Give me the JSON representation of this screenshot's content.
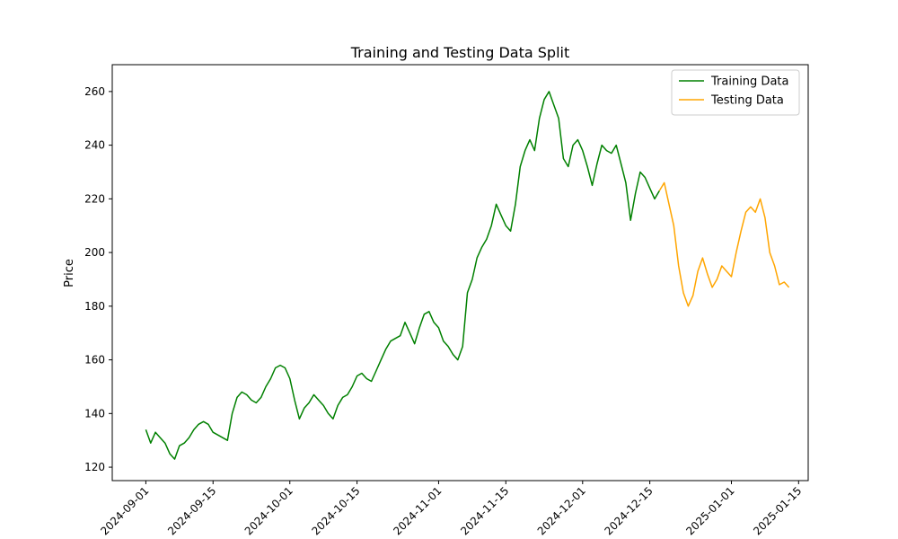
{
  "chart_data": {
    "type": "line",
    "title": "Training and Testing Data Split",
    "xlabel": "",
    "ylabel": "Price",
    "xlim": [
      "2024-08-25",
      "2025-01-17"
    ],
    "ylim": [
      115,
      270
    ],
    "grid": false,
    "legend_position": "top-right",
    "x_ticks": [
      "2024-09-01",
      "2024-09-15",
      "2024-10-01",
      "2024-10-15",
      "2024-11-01",
      "2024-11-15",
      "2024-12-01",
      "2024-12-15",
      "2025-01-01",
      "2025-01-15"
    ],
    "y_ticks": [
      120,
      140,
      160,
      180,
      200,
      220,
      240,
      260
    ],
    "series": [
      {
        "name": "Training Data",
        "color": "#008000",
        "points": [
          [
            "2024-09-01",
            134
          ],
          [
            "2024-09-02",
            129
          ],
          [
            "2024-09-03",
            133
          ],
          [
            "2024-09-04",
            131
          ],
          [
            "2024-09-05",
            129
          ],
          [
            "2024-09-06",
            125
          ],
          [
            "2024-09-07",
            123
          ],
          [
            "2024-09-08",
            128
          ],
          [
            "2024-09-09",
            129
          ],
          [
            "2024-09-10",
            131
          ],
          [
            "2024-09-11",
            134
          ],
          [
            "2024-09-12",
            136
          ],
          [
            "2024-09-13",
            137
          ],
          [
            "2024-09-14",
            136
          ],
          [
            "2024-09-15",
            133
          ],
          [
            "2024-09-16",
            132
          ],
          [
            "2024-09-17",
            131
          ],
          [
            "2024-09-18",
            130
          ],
          [
            "2024-09-19",
            140
          ],
          [
            "2024-09-20",
            146
          ],
          [
            "2024-09-21",
            148
          ],
          [
            "2024-09-22",
            147
          ],
          [
            "2024-09-23",
            145
          ],
          [
            "2024-09-24",
            144
          ],
          [
            "2024-09-25",
            146
          ],
          [
            "2024-09-26",
            150
          ],
          [
            "2024-09-27",
            153
          ],
          [
            "2024-09-28",
            157
          ],
          [
            "2024-09-29",
            158
          ],
          [
            "2024-09-30",
            157
          ],
          [
            "2024-10-01",
            153
          ],
          [
            "2024-10-02",
            145
          ],
          [
            "2024-10-03",
            138
          ],
          [
            "2024-10-04",
            142
          ],
          [
            "2024-10-05",
            144
          ],
          [
            "2024-10-06",
            147
          ],
          [
            "2024-10-07",
            145
          ],
          [
            "2024-10-08",
            143
          ],
          [
            "2024-10-09",
            140
          ],
          [
            "2024-10-10",
            138
          ],
          [
            "2024-10-11",
            143
          ],
          [
            "2024-10-12",
            146
          ],
          [
            "2024-10-13",
            147
          ],
          [
            "2024-10-14",
            150
          ],
          [
            "2024-10-15",
            154
          ],
          [
            "2024-10-16",
            155
          ],
          [
            "2024-10-17",
            153
          ],
          [
            "2024-10-18",
            152
          ],
          [
            "2024-10-19",
            156
          ],
          [
            "2024-10-20",
            160
          ],
          [
            "2024-10-21",
            164
          ],
          [
            "2024-10-22",
            167
          ],
          [
            "2024-10-23",
            168
          ],
          [
            "2024-10-24",
            169
          ],
          [
            "2024-10-25",
            174
          ],
          [
            "2024-10-26",
            170
          ],
          [
            "2024-10-27",
            166
          ],
          [
            "2024-10-28",
            172
          ],
          [
            "2024-10-29",
            177
          ],
          [
            "2024-10-30",
            178
          ],
          [
            "2024-10-31",
            174
          ],
          [
            "2024-11-01",
            172
          ],
          [
            "2024-11-02",
            167
          ],
          [
            "2024-11-03",
            165
          ],
          [
            "2024-11-04",
            162
          ],
          [
            "2024-11-05",
            160
          ],
          [
            "2024-11-06",
            165
          ],
          [
            "2024-11-07",
            185
          ],
          [
            "2024-11-08",
            190
          ],
          [
            "2024-11-09",
            198
          ],
          [
            "2024-11-10",
            202
          ],
          [
            "2024-11-11",
            205
          ],
          [
            "2024-11-12",
            210
          ],
          [
            "2024-11-13",
            218
          ],
          [
            "2024-11-14",
            214
          ],
          [
            "2024-11-15",
            210
          ],
          [
            "2024-11-16",
            208
          ],
          [
            "2024-11-17",
            218
          ],
          [
            "2024-11-18",
            232
          ],
          [
            "2024-11-19",
            238
          ],
          [
            "2024-11-20",
            242
          ],
          [
            "2024-11-21",
            238
          ],
          [
            "2024-11-22",
            250
          ],
          [
            "2024-11-23",
            257
          ],
          [
            "2024-11-24",
            260
          ],
          [
            "2024-11-25",
            255
          ],
          [
            "2024-11-26",
            250
          ],
          [
            "2024-11-27",
            235
          ],
          [
            "2024-11-28",
            232
          ],
          [
            "2024-11-29",
            240
          ],
          [
            "2024-11-30",
            242
          ],
          [
            "2024-12-01",
            238
          ],
          [
            "2024-12-02",
            232
          ],
          [
            "2024-12-03",
            225
          ],
          [
            "2024-12-04",
            233
          ],
          [
            "2024-12-05",
            240
          ],
          [
            "2024-12-06",
            238
          ],
          [
            "2024-12-07",
            237
          ],
          [
            "2024-12-08",
            240
          ],
          [
            "2024-12-09",
            233
          ],
          [
            "2024-12-10",
            226
          ],
          [
            "2024-12-11",
            212
          ],
          [
            "2024-12-12",
            222
          ],
          [
            "2024-12-13",
            230
          ],
          [
            "2024-12-14",
            228
          ],
          [
            "2024-12-15",
            224
          ],
          [
            "2024-12-16",
            220
          ],
          [
            "2024-12-17",
            223
          ]
        ]
      },
      {
        "name": "Testing Data",
        "color": "#ffa500",
        "points": [
          [
            "2024-12-17",
            223
          ],
          [
            "2024-12-18",
            226
          ],
          [
            "2024-12-19",
            218
          ],
          [
            "2024-12-20",
            210
          ],
          [
            "2024-12-21",
            195
          ],
          [
            "2024-12-22",
            185
          ],
          [
            "2024-12-23",
            180
          ],
          [
            "2024-12-24",
            184
          ],
          [
            "2024-12-25",
            193
          ],
          [
            "2024-12-26",
            198
          ],
          [
            "2024-12-27",
            192
          ],
          [
            "2024-12-28",
            187
          ],
          [
            "2024-12-29",
            190
          ],
          [
            "2024-12-30",
            195
          ],
          [
            "2024-12-31",
            193
          ],
          [
            "2025-01-01",
            191
          ],
          [
            "2025-01-02",
            200
          ],
          [
            "2025-01-03",
            208
          ],
          [
            "2025-01-04",
            215
          ],
          [
            "2025-01-05",
            217
          ],
          [
            "2025-01-06",
            215
          ],
          [
            "2025-01-07",
            220
          ],
          [
            "2025-01-08",
            213
          ],
          [
            "2025-01-09",
            200
          ],
          [
            "2025-01-10",
            195
          ],
          [
            "2025-01-11",
            188
          ],
          [
            "2025-01-12",
            189
          ],
          [
            "2025-01-13",
            187
          ]
        ]
      }
    ]
  }
}
